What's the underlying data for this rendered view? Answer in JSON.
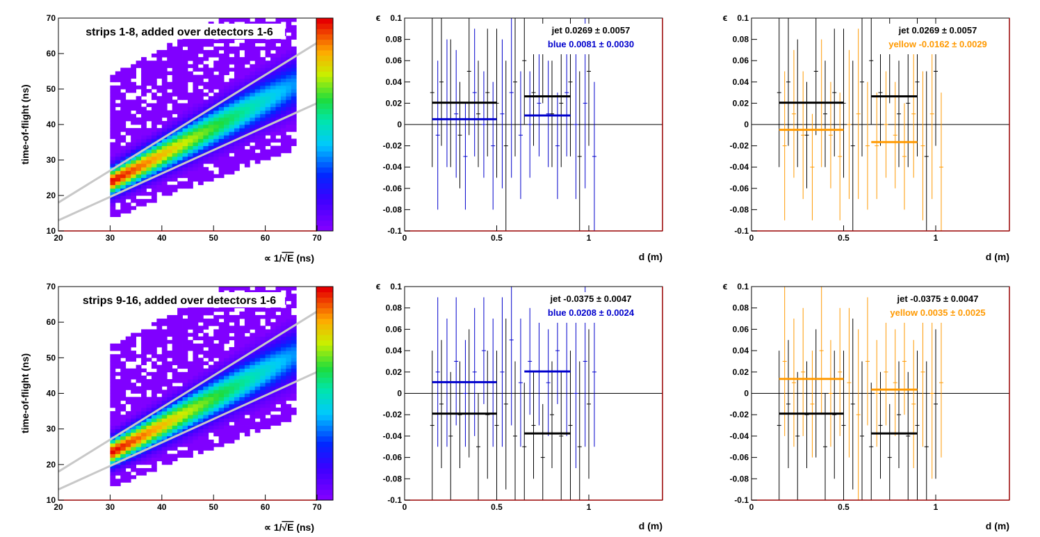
{
  "colors": {
    "jet": "#000000",
    "blue": "#0000cc",
    "yellow": "#ff9900",
    "frame_right": "#990000",
    "cut_lines": "#c8c8c8",
    "floor": "#8000ff"
  },
  "chart_data": [
    {
      "type": "heatmap",
      "id": "tof_top",
      "title": "strips 1-8, added over detectors 1-6",
      "xlabel_prefix": "∝ 1/",
      "xlabel_sqrt": "E",
      "xlabel_suffix": " (ns)",
      "ylabel": "time-of-flight (ns)",
      "xlim": [
        20,
        70
      ],
      "ylim": [
        10,
        70
      ],
      "xticks": [
        "20",
        "30",
        "40",
        "50",
        "60",
        "70"
      ],
      "yticks": [
        "10",
        "20",
        "30",
        "40",
        "50",
        "60",
        "70"
      ],
      "ridge": {
        "x": [
          31,
          66
        ],
        "y": [
          24.5,
          51.5
        ],
        "sigma": [
          2.5,
          4.5
        ],
        "amplitude": [
          1.0,
          0.35
        ]
      },
      "occupancy": {
        "x": [
          30,
          66
        ],
        "y_low": 14,
        "y_high": 70
      },
      "cut_lines": [
        {
          "x": [
            20,
            70
          ],
          "y": [
            18,
            63
          ]
        },
        {
          "x": [
            20,
            70
          ],
          "y": [
            13,
            46
          ]
        }
      ]
    },
    {
      "type": "scatter",
      "id": "eps_blue_top",
      "ylabel": "ϵ",
      "xlabel": "d (m)",
      "xlim": [
        0,
        1.4
      ],
      "ylim": [
        -0.1,
        0.1
      ],
      "xticks": [
        "0",
        "0.5",
        "1"
      ],
      "yticks": [
        "-0.1",
        "-0.08",
        "-0.06",
        "-0.04",
        "-0.02",
        "0",
        "0.02",
        "0.04",
        "0.06",
        "0.08",
        "0.1"
      ],
      "legend": [
        {
          "name": "jet",
          "text": "jet  0.0269 ± 0.0057"
        },
        {
          "name": "blue",
          "text": "blue  0.0081 ± 0.0030"
        }
      ],
      "series": [
        {
          "name": "jet",
          "x": [
            0.15,
            0.2,
            0.25,
            0.3,
            0.35,
            0.4,
            0.45,
            0.5,
            0.55,
            0.6,
            0.65,
            0.7,
            0.75,
            0.8,
            0.85,
            0.9,
            0.95,
            1.0
          ],
          "y": [
            0.03,
            0.04,
            0.02,
            -0.01,
            0.05,
            0.01,
            0.03,
            0.02,
            -0.02,
            0.04,
            0.06,
            0.03,
            0.07,
            0.01,
            0.02,
            0.04,
            -0.03,
            0.05
          ],
          "err": [
            0.07,
            0.06,
            0.06,
            0.05,
            0.06,
            0.05,
            0.06,
            0.07,
            0.08,
            0.07,
            0.06,
            0.05,
            0.05,
            0.05,
            0.06,
            0.07,
            0.08,
            0.07
          ]
        },
        {
          "name": "blue",
          "x": [
            0.18,
            0.23,
            0.28,
            0.33,
            0.38,
            0.43,
            0.48,
            0.53,
            0.58,
            0.63,
            0.68,
            0.73,
            0.78,
            0.83,
            0.88,
            0.93,
            0.98,
            1.03
          ],
          "y": [
            -0.01,
            0.02,
            0.01,
            -0.03,
            0.03,
            0.0,
            -0.02,
            0.01,
            0.03,
            -0.01,
            0.0,
            0.02,
            0.01,
            -0.02,
            0.03,
            0.0,
            0.02,
            -0.03
          ],
          "err": [
            0.07,
            0.06,
            0.06,
            0.05,
            0.06,
            0.05,
            0.06,
            0.07,
            0.08,
            0.06,
            0.05,
            0.05,
            0.05,
            0.05,
            0.06,
            0.07,
            0.08,
            0.07
          ]
        }
      ],
      "averages": [
        {
          "name": "jet",
          "x": [
            0.15,
            0.5
          ],
          "y": 0.0205
        },
        {
          "name": "jet",
          "x": [
            0.65,
            0.9
          ],
          "y": 0.0265
        },
        {
          "name": "blue",
          "x": [
            0.15,
            0.5
          ],
          "y": 0.005
        },
        {
          "name": "blue",
          "x": [
            0.65,
            0.9
          ],
          "y": 0.0085
        }
      ]
    },
    {
      "type": "scatter",
      "id": "eps_yellow_top",
      "ylabel": "ϵ",
      "xlabel": "d (m)",
      "xlim": [
        0,
        1.4
      ],
      "ylim": [
        -0.1,
        0.1
      ],
      "xticks": [
        "0",
        "0.5",
        "1"
      ],
      "yticks": [
        "-0.1",
        "-0.08",
        "-0.06",
        "-0.04",
        "-0.02",
        "0",
        "0.02",
        "0.04",
        "0.06",
        "0.08",
        "0.1"
      ],
      "legend": [
        {
          "name": "jet",
          "text": "jet  0.0269 ± 0.0057"
        },
        {
          "name": "yellow",
          "text": "yellow  -0.0162 ± 0.0029"
        }
      ],
      "series": [
        {
          "name": "jet",
          "x": [
            0.15,
            0.2,
            0.25,
            0.3,
            0.35,
            0.4,
            0.45,
            0.5,
            0.55,
            0.6,
            0.65,
            0.7,
            0.75,
            0.8,
            0.85,
            0.9,
            0.95,
            1.0
          ],
          "y": [
            0.03,
            0.04,
            0.02,
            -0.01,
            0.05,
            0.01,
            0.03,
            0.02,
            -0.02,
            0.04,
            0.06,
            0.03,
            0.07,
            0.01,
            0.02,
            0.04,
            -0.03,
            0.05
          ],
          "err": [
            0.07,
            0.06,
            0.06,
            0.05,
            0.06,
            0.05,
            0.06,
            0.07,
            0.08,
            0.07,
            0.06,
            0.05,
            0.05,
            0.05,
            0.06,
            0.07,
            0.08,
            0.07
          ]
        },
        {
          "name": "yellow",
          "x": [
            0.18,
            0.23,
            0.28,
            0.33,
            0.38,
            0.43,
            0.48,
            0.53,
            0.58,
            0.63,
            0.68,
            0.73,
            0.78,
            0.83,
            0.88,
            0.93,
            0.98,
            1.03
          ],
          "y": [
            -0.02,
            0.01,
            -0.01,
            -0.04,
            0.02,
            -0.01,
            -0.03,
            0.0,
            0.01,
            -0.02,
            -0.02,
            0.0,
            -0.01,
            -0.03,
            0.01,
            -0.02,
            0.01,
            -0.04
          ],
          "err": [
            0.07,
            0.06,
            0.06,
            0.05,
            0.06,
            0.05,
            0.06,
            0.07,
            0.08,
            0.06,
            0.05,
            0.05,
            0.05,
            0.05,
            0.06,
            0.07,
            0.08,
            0.07
          ]
        }
      ],
      "averages": [
        {
          "name": "jet",
          "x": [
            0.15,
            0.5
          ],
          "y": 0.0205
        },
        {
          "name": "jet",
          "x": [
            0.65,
            0.9
          ],
          "y": 0.0265
        },
        {
          "name": "yellow",
          "x": [
            0.15,
            0.5
          ],
          "y": -0.005
        },
        {
          "name": "yellow",
          "x": [
            0.65,
            0.9
          ],
          "y": -0.0165
        }
      ]
    },
    {
      "type": "heatmap",
      "id": "tof_bottom",
      "title": "strips 9-16, added over detectors 1-6",
      "xlabel_prefix": "∝ 1/",
      "xlabel_sqrt": "E",
      "xlabel_suffix": " (ns)",
      "ylabel": "time-of-flight (ns)",
      "xlim": [
        20,
        70
      ],
      "ylim": [
        10,
        70
      ],
      "xticks": [
        "20",
        "30",
        "40",
        "50",
        "60",
        "70"
      ],
      "yticks": [
        "10",
        "20",
        "30",
        "40",
        "50",
        "60",
        "70"
      ],
      "ridge": {
        "x": [
          31,
          66
        ],
        "y": [
          24.0,
          51.0
        ],
        "sigma": [
          2.5,
          4.5
        ],
        "amplitude": [
          1.0,
          0.35
        ]
      },
      "occupancy": {
        "x": [
          30,
          66
        ],
        "y_low": 14,
        "y_high": 70
      },
      "cut_lines": [
        {
          "x": [
            20,
            70
          ],
          "y": [
            18,
            63
          ]
        },
        {
          "x": [
            20,
            70
          ],
          "y": [
            13,
            46
          ]
        }
      ]
    },
    {
      "type": "scatter",
      "id": "eps_blue_bottom",
      "ylabel": "ϵ",
      "xlabel": "d (m)",
      "xlim": [
        0,
        1.4
      ],
      "ylim": [
        -0.1,
        0.1
      ],
      "xticks": [
        "0",
        "0.5",
        "1"
      ],
      "yticks": [
        "-0.1",
        "-0.08",
        "-0.06",
        "-0.04",
        "-0.02",
        "0",
        "0.02",
        "0.04",
        "0.06",
        "0.08",
        "0.1"
      ],
      "legend": [
        {
          "name": "jet",
          "text": "jet -0.0375 ± 0.0047"
        },
        {
          "name": "blue",
          "text": "blue  0.0208 ± 0.0024"
        }
      ],
      "series": [
        {
          "name": "jet",
          "x": [
            0.15,
            0.2,
            0.25,
            0.3,
            0.35,
            0.4,
            0.45,
            0.5,
            0.55,
            0.6,
            0.65,
            0.7,
            0.75,
            0.8,
            0.85,
            0.9,
            0.95,
            1.0
          ],
          "y": [
            -0.03,
            -0.01,
            -0.04,
            -0.02,
            0.0,
            -0.05,
            -0.02,
            -0.03,
            -0.01,
            -0.04,
            -0.05,
            -0.03,
            -0.06,
            -0.02,
            -0.04,
            -0.03,
            -0.05,
            -0.01
          ],
          "err": [
            0.07,
            0.06,
            0.06,
            0.05,
            0.06,
            0.05,
            0.06,
            0.07,
            0.08,
            0.07,
            0.06,
            0.05,
            0.05,
            0.05,
            0.06,
            0.07,
            0.08,
            0.07
          ]
        },
        {
          "name": "blue",
          "x": [
            0.18,
            0.23,
            0.28,
            0.33,
            0.38,
            0.43,
            0.48,
            0.53,
            0.58,
            0.63,
            0.68,
            0.73,
            0.78,
            0.83,
            0.88,
            0.93,
            0.98,
            1.03
          ],
          "y": [
            0.02,
            0.01,
            0.03,
            0.0,
            0.02,
            0.04,
            0.01,
            0.02,
            0.05,
            0.01,
            0.03,
            0.02,
            0.01,
            0.04,
            0.02,
            0.0,
            0.03,
            0.02
          ],
          "err": [
            0.07,
            0.06,
            0.06,
            0.05,
            0.06,
            0.05,
            0.06,
            0.07,
            0.08,
            0.06,
            0.05,
            0.05,
            0.05,
            0.05,
            0.06,
            0.07,
            0.08,
            0.07
          ]
        }
      ],
      "averages": [
        {
          "name": "jet",
          "x": [
            0.15,
            0.5
          ],
          "y": -0.019
        },
        {
          "name": "jet",
          "x": [
            0.65,
            0.9
          ],
          "y": -0.0375
        },
        {
          "name": "blue",
          "x": [
            0.15,
            0.5
          ],
          "y": 0.0105
        },
        {
          "name": "blue",
          "x": [
            0.65,
            0.9
          ],
          "y": 0.0205
        }
      ]
    },
    {
      "type": "scatter",
      "id": "eps_yellow_bottom",
      "ylabel": "ϵ",
      "xlabel": "d (m)",
      "xlim": [
        0,
        1.4
      ],
      "ylim": [
        -0.1,
        0.1
      ],
      "xticks": [
        "0",
        "0.5",
        "1"
      ],
      "yticks": [
        "-0.1",
        "-0.08",
        "-0.06",
        "-0.04",
        "-0.02",
        "0",
        "0.02",
        "0.04",
        "0.06",
        "0.08",
        "0.1"
      ],
      "legend": [
        {
          "name": "jet",
          "text": "jet -0.0375 ± 0.0047"
        },
        {
          "name": "yellow",
          "text": "yellow  0.0035 ± 0.0025"
        }
      ],
      "series": [
        {
          "name": "jet",
          "x": [
            0.15,
            0.2,
            0.25,
            0.3,
            0.35,
            0.4,
            0.45,
            0.5,
            0.55,
            0.6,
            0.65,
            0.7,
            0.75,
            0.8,
            0.85,
            0.9,
            0.95,
            1.0
          ],
          "y": [
            -0.03,
            -0.01,
            -0.04,
            -0.02,
            0.0,
            -0.05,
            -0.02,
            -0.03,
            -0.01,
            -0.04,
            -0.05,
            -0.03,
            -0.06,
            -0.02,
            -0.04,
            -0.03,
            -0.05,
            -0.01
          ],
          "err": [
            0.07,
            0.06,
            0.06,
            0.05,
            0.06,
            0.05,
            0.06,
            0.07,
            0.08,
            0.07,
            0.06,
            0.05,
            0.05,
            0.05,
            0.06,
            0.07,
            0.08,
            0.07
          ]
        },
        {
          "name": "yellow",
          "x": [
            0.18,
            0.23,
            0.28,
            0.33,
            0.38,
            0.43,
            0.48,
            0.53,
            0.58,
            0.63,
            0.68,
            0.73,
            0.78,
            0.83,
            0.88,
            0.93,
            0.98,
            1.03
          ],
          "y": [
            0.03,
            0.01,
            0.02,
            -0.01,
            0.04,
            0.0,
            0.02,
            0.01,
            -0.02,
            0.03,
            0.0,
            0.02,
            0.01,
            0.03,
            -0.01,
            0.02,
            0.0,
            0.01
          ],
          "err": [
            0.07,
            0.06,
            0.06,
            0.05,
            0.06,
            0.05,
            0.06,
            0.07,
            0.08,
            0.06,
            0.05,
            0.05,
            0.05,
            0.05,
            0.06,
            0.07,
            0.08,
            0.07
          ]
        }
      ],
      "averages": [
        {
          "name": "jet",
          "x": [
            0.15,
            0.5
          ],
          "y": -0.019
        },
        {
          "name": "jet",
          "x": [
            0.65,
            0.9
          ],
          "y": -0.0375
        },
        {
          "name": "yellow",
          "x": [
            0.15,
            0.5
          ],
          "y": 0.0135
        },
        {
          "name": "yellow",
          "x": [
            0.65,
            0.9
          ],
          "y": 0.0035
        }
      ]
    }
  ]
}
